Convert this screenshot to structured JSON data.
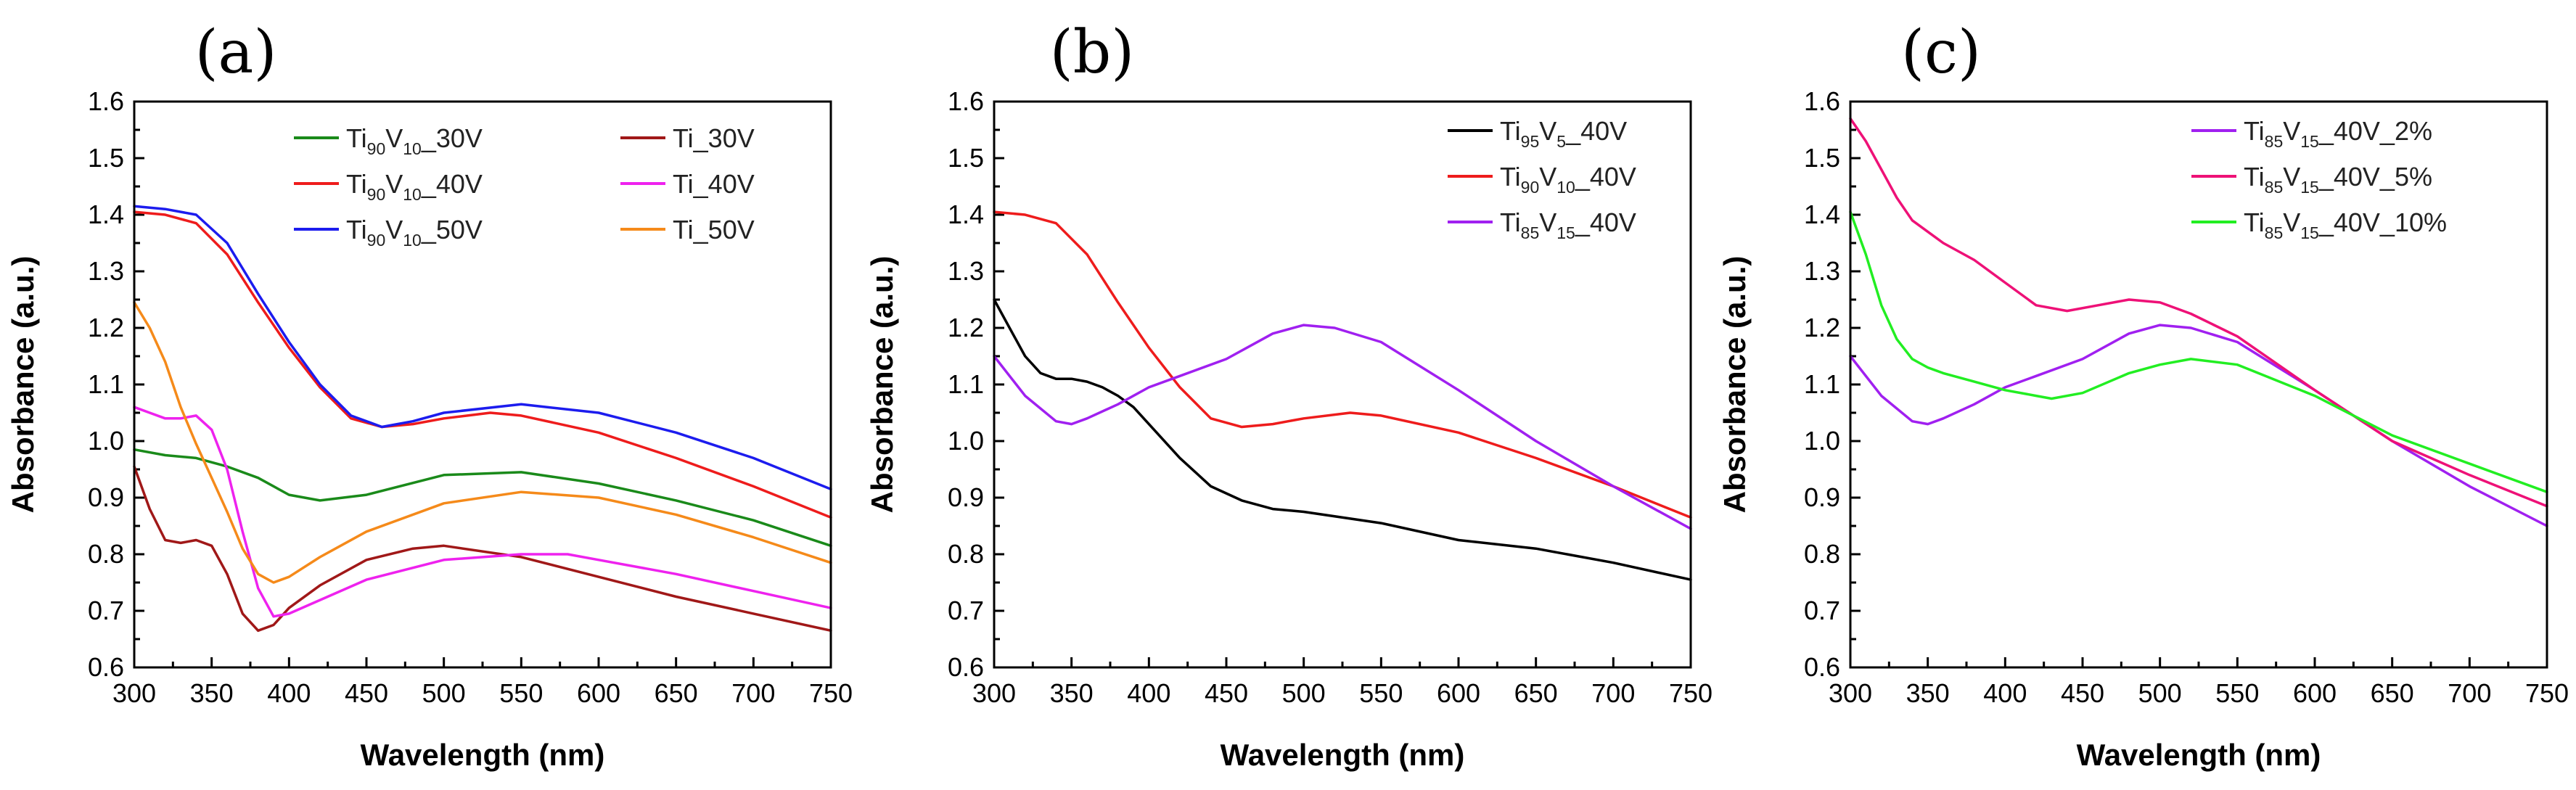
{
  "chart_data": [
    {
      "panel_label": "(a)",
      "type": "line",
      "xlabel": "Wavelength (nm)",
      "ylabel": "Absorbance (a.u.)",
      "xlim": [
        300,
        750
      ],
      "ylim": [
        0.6,
        1.6
      ],
      "xticks": [
        300,
        350,
        400,
        450,
        500,
        550,
        600,
        650,
        700,
        750
      ],
      "yticks": [
        0.6,
        0.7,
        0.8,
        0.9,
        1.0,
        1.1,
        1.2,
        1.3,
        1.4,
        1.5,
        1.6
      ],
      "ytick_labels": [
        "0.6",
        "0.7",
        "0.8",
        "0.9",
        "1.0",
        "1.1",
        "1.2",
        "1.3",
        "1.4",
        "1.5",
        "1.6"
      ],
      "legend_columns": 2,
      "legend_position": "top-right",
      "series": [
        {
          "name": "Ti90V10_30V",
          "legend_parts": [
            [
              "Ti",
              ""
            ],
            [
              "90",
              "sub"
            ],
            [
              "V",
              ""
            ],
            [
              "10",
              "sub"
            ],
            [
              "_30V",
              ""
            ]
          ],
          "color": "#1a8a1a",
          "x": [
            300,
            320,
            340,
            360,
            380,
            400,
            420,
            450,
            500,
            550,
            600,
            650,
            700,
            750
          ],
          "y": [
            0.985,
            0.975,
            0.97,
            0.955,
            0.935,
            0.905,
            0.895,
            0.905,
            0.94,
            0.945,
            0.925,
            0.895,
            0.86,
            0.815
          ]
        },
        {
          "name": "Ti90V10_40V",
          "legend_parts": [
            [
              "Ti",
              ""
            ],
            [
              "90",
              "sub"
            ],
            [
              "V",
              ""
            ],
            [
              "10",
              "sub"
            ],
            [
              "_40V",
              ""
            ]
          ],
          "color": "#ee1c1c",
          "x": [
            300,
            320,
            340,
            360,
            380,
            400,
            420,
            440,
            460,
            480,
            500,
            530,
            550,
            600,
            650,
            700,
            750
          ],
          "y": [
            1.405,
            1.4,
            1.385,
            1.33,
            1.245,
            1.165,
            1.095,
            1.04,
            1.025,
            1.03,
            1.04,
            1.05,
            1.045,
            1.015,
            0.97,
            0.92,
            0.865
          ]
        },
        {
          "name": "Ti90V10_50V",
          "legend_parts": [
            [
              "Ti",
              ""
            ],
            [
              "90",
              "sub"
            ],
            [
              "V",
              ""
            ],
            [
              "10",
              "sub"
            ],
            [
              "_50V",
              ""
            ]
          ],
          "color": "#1c1cee",
          "x": [
            300,
            320,
            340,
            360,
            380,
            400,
            420,
            440,
            460,
            480,
            500,
            550,
            600,
            650,
            700,
            750
          ],
          "y": [
            1.415,
            1.41,
            1.4,
            1.35,
            1.26,
            1.175,
            1.1,
            1.045,
            1.025,
            1.035,
            1.05,
            1.065,
            1.05,
            1.015,
            0.97,
            0.915
          ]
        },
        {
          "name": "Ti_30V",
          "legend_parts": [
            [
              "Ti_30V",
              ""
            ]
          ],
          "color": "#a01818",
          "x": [
            300,
            310,
            320,
            330,
            340,
            350,
            360,
            370,
            380,
            390,
            400,
            420,
            450,
            480,
            500,
            550,
            600,
            650,
            700,
            750
          ],
          "y": [
            0.955,
            0.88,
            0.825,
            0.82,
            0.825,
            0.815,
            0.765,
            0.695,
            0.665,
            0.675,
            0.705,
            0.745,
            0.79,
            0.81,
            0.815,
            0.795,
            0.76,
            0.725,
            0.695,
            0.665
          ]
        },
        {
          "name": "Ti_40V",
          "legend_parts": [
            [
              "Ti_40V",
              ""
            ]
          ],
          "color": "#ee22ee",
          "x": [
            300,
            310,
            320,
            330,
            340,
            350,
            360,
            370,
            380,
            390,
            400,
            450,
            500,
            550,
            580,
            600,
            650,
            700,
            750
          ],
          "y": [
            1.06,
            1.05,
            1.04,
            1.04,
            1.045,
            1.02,
            0.95,
            0.84,
            0.74,
            0.69,
            0.695,
            0.755,
            0.79,
            0.8,
            0.8,
            0.79,
            0.765,
            0.735,
            0.705
          ]
        },
        {
          "name": "Ti_50V",
          "legend_parts": [
            [
              "Ti_50V",
              ""
            ]
          ],
          "color": "#f58a1a",
          "x": [
            300,
            310,
            320,
            330,
            340,
            350,
            360,
            370,
            380,
            390,
            400,
            420,
            450,
            500,
            550,
            600,
            650,
            700,
            750
          ],
          "y": [
            1.245,
            1.2,
            1.14,
            1.06,
            0.995,
            0.935,
            0.875,
            0.81,
            0.765,
            0.75,
            0.76,
            0.795,
            0.84,
            0.89,
            0.91,
            0.9,
            0.87,
            0.83,
            0.785
          ]
        }
      ]
    },
    {
      "panel_label": "(b)",
      "type": "line",
      "xlabel": "Wavelength (nm)",
      "ylabel": "Absorbance (a.u.)",
      "xlim": [
        300,
        750
      ],
      "ylim": [
        0.6,
        1.6
      ],
      "xticks": [
        300,
        350,
        400,
        450,
        500,
        550,
        600,
        650,
        700,
        750
      ],
      "yticks": [
        0.6,
        0.7,
        0.8,
        0.9,
        1.0,
        1.1,
        1.2,
        1.3,
        1.4,
        1.5,
        1.6
      ],
      "ytick_labels": [
        "0.6",
        "0.7",
        "0.8",
        "0.9",
        "1.0",
        "1.1",
        "1.2",
        "1.3",
        "1.4",
        "1.5",
        "1.6"
      ],
      "legend_columns": 1,
      "legend_position": "top-right",
      "series": [
        {
          "name": "Ti95V5_40V",
          "legend_parts": [
            [
              "Ti",
              ""
            ],
            [
              "95",
              "sub"
            ],
            [
              "V",
              ""
            ],
            [
              "5",
              "sub"
            ],
            [
              "_40V",
              ""
            ]
          ],
          "color": "#000000",
          "x": [
            300,
            310,
            320,
            330,
            340,
            350,
            360,
            370,
            380,
            390,
            400,
            420,
            440,
            460,
            480,
            500,
            550,
            600,
            650,
            700,
            750
          ],
          "y": [
            1.25,
            1.2,
            1.15,
            1.12,
            1.11,
            1.11,
            1.105,
            1.095,
            1.08,
            1.06,
            1.03,
            0.97,
            0.92,
            0.895,
            0.88,
            0.875,
            0.855,
            0.825,
            0.81,
            0.785,
            0.755
          ]
        },
        {
          "name": "Ti90V10_40V",
          "legend_parts": [
            [
              "Ti",
              ""
            ],
            [
              "90",
              "sub"
            ],
            [
              "V",
              ""
            ],
            [
              "10",
              "sub"
            ],
            [
              "_40V",
              ""
            ]
          ],
          "color": "#ee1c1c",
          "x": [
            300,
            320,
            340,
            360,
            380,
            400,
            420,
            440,
            460,
            480,
            500,
            530,
            550,
            600,
            650,
            700,
            750
          ],
          "y": [
            1.405,
            1.4,
            1.385,
            1.33,
            1.245,
            1.165,
            1.095,
            1.04,
            1.025,
            1.03,
            1.04,
            1.05,
            1.045,
            1.015,
            0.97,
            0.92,
            0.865
          ]
        },
        {
          "name": "Ti85V15_40V",
          "legend_parts": [
            [
              "Ti",
              ""
            ],
            [
              "85",
              "sub"
            ],
            [
              "V",
              ""
            ],
            [
              "15",
              "sub"
            ],
            [
              "_40V",
              ""
            ]
          ],
          "color": "#a020f0",
          "x": [
            300,
            320,
            340,
            350,
            360,
            380,
            400,
            420,
            450,
            480,
            500,
            520,
            550,
            600,
            650,
            700,
            750
          ],
          "y": [
            1.15,
            1.08,
            1.035,
            1.03,
            1.04,
            1.065,
            1.095,
            1.115,
            1.145,
            1.19,
            1.205,
            1.2,
            1.175,
            1.09,
            1.0,
            0.92,
            0.845
          ]
        }
      ]
    },
    {
      "panel_label": "(c)",
      "type": "line",
      "xlabel": "Wavelength (nm)",
      "ylabel": "Absorbance (a.u.)",
      "xlim": [
        300,
        750
      ],
      "ylim": [
        0.6,
        1.6
      ],
      "xticks": [
        300,
        350,
        400,
        450,
        500,
        550,
        600,
        650,
        700,
        750
      ],
      "yticks": [
        0.6,
        0.7,
        0.8,
        0.9,
        1.0,
        1.1,
        1.2,
        1.3,
        1.4,
        1.5,
        1.6
      ],
      "ytick_labels": [
        "0.6",
        "0.7",
        "0.8",
        "0.9",
        "1.0",
        "1.1",
        "1.2",
        "1.3",
        "1.4",
        "1.5",
        "1.6"
      ],
      "legend_columns": 1,
      "legend_position": "top-right",
      "series": [
        {
          "name": "Ti85V15_40V_2%",
          "legend_parts": [
            [
              "Ti",
              ""
            ],
            [
              "85",
              "sub"
            ],
            [
              "V",
              ""
            ],
            [
              "15",
              "sub"
            ],
            [
              "_40V_2%",
              ""
            ]
          ],
          "color": "#a020f0",
          "x": [
            300,
            320,
            340,
            350,
            360,
            380,
            400,
            420,
            450,
            480,
            500,
            520,
            550,
            600,
            650,
            700,
            750
          ],
          "y": [
            1.15,
            1.08,
            1.035,
            1.03,
            1.04,
            1.065,
            1.095,
            1.115,
            1.145,
            1.19,
            1.205,
            1.2,
            1.175,
            1.09,
            1.0,
            0.92,
            0.85
          ]
        },
        {
          "name": "Ti85V15_40V_5%",
          "legend_parts": [
            [
              "Ti",
              ""
            ],
            [
              "85",
              "sub"
            ],
            [
              "V",
              ""
            ],
            [
              "15",
              "sub"
            ],
            [
              "_40V_5%",
              ""
            ]
          ],
          "color": "#ee1177",
          "x": [
            300,
            310,
            320,
            330,
            340,
            350,
            360,
            380,
            400,
            420,
            440,
            460,
            480,
            500,
            520,
            550,
            600,
            650,
            700,
            750
          ],
          "y": [
            1.57,
            1.53,
            1.48,
            1.43,
            1.39,
            1.37,
            1.35,
            1.32,
            1.28,
            1.24,
            1.23,
            1.24,
            1.25,
            1.245,
            1.225,
            1.185,
            1.09,
            1.0,
            0.94,
            0.885
          ]
        },
        {
          "name": "Ti85V15_40V_10%",
          "legend_parts": [
            [
              "Ti",
              ""
            ],
            [
              "85",
              "sub"
            ],
            [
              "V",
              ""
            ],
            [
              "15",
              "sub"
            ],
            [
              "_40V_10%",
              ""
            ]
          ],
          "color": "#22ee22",
          "x": [
            300,
            310,
            320,
            330,
            340,
            350,
            360,
            380,
            400,
            420,
            430,
            450,
            480,
            500,
            520,
            550,
            600,
            650,
            700,
            750
          ],
          "y": [
            1.405,
            1.33,
            1.24,
            1.18,
            1.145,
            1.13,
            1.12,
            1.105,
            1.09,
            1.08,
            1.075,
            1.085,
            1.12,
            1.135,
            1.145,
            1.135,
            1.08,
            1.01,
            0.96,
            0.91
          ]
        }
      ]
    }
  ]
}
